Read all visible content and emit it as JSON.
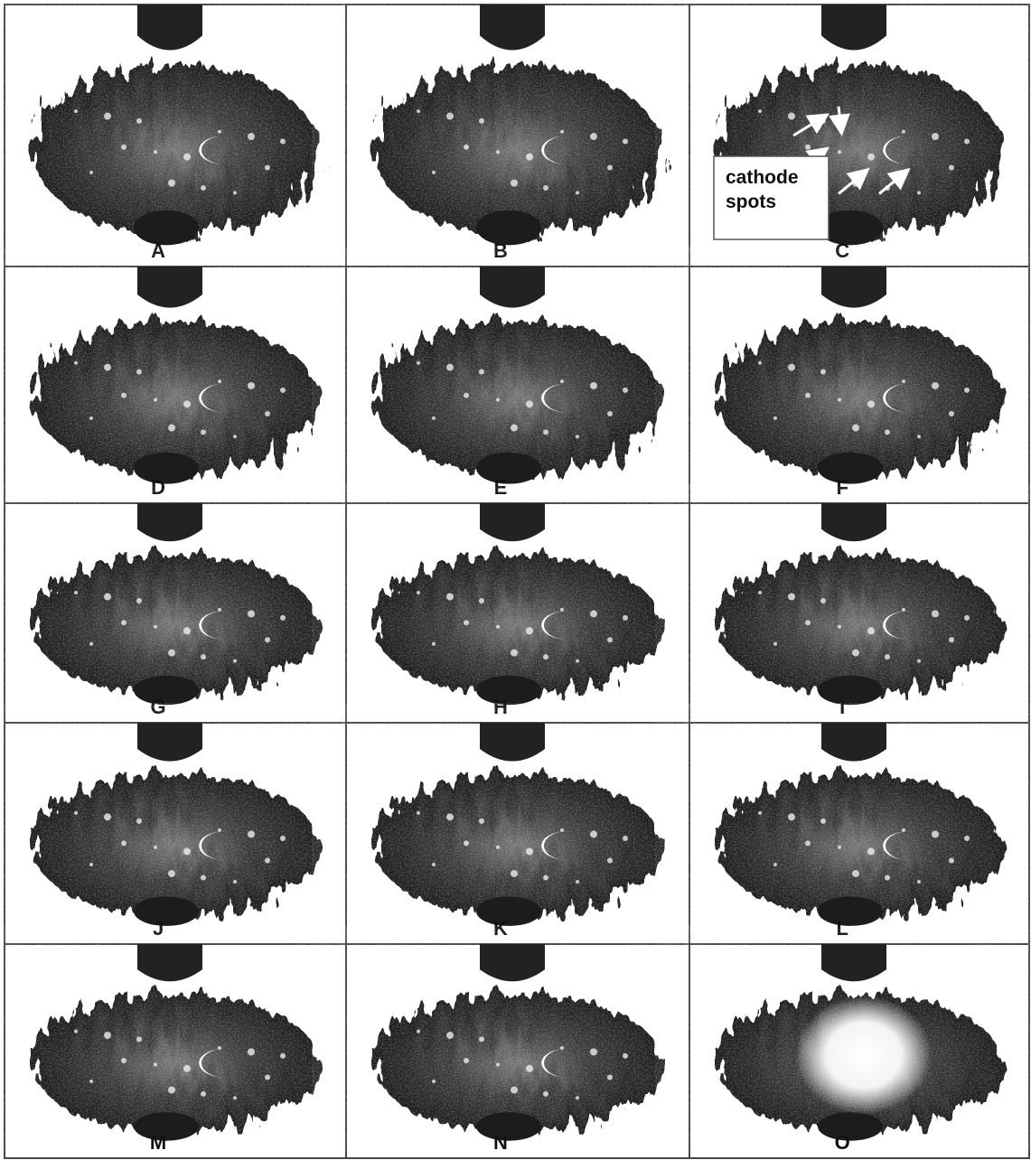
{
  "panels": [
    {
      "label": "A"
    },
    {
      "label": "B"
    },
    {
      "label": "C",
      "annotation": {
        "line1": "cathode",
        "line2": "spots"
      }
    },
    {
      "label": "D"
    },
    {
      "label": "E"
    },
    {
      "label": "F"
    },
    {
      "label": "G"
    },
    {
      "label": "H"
    },
    {
      "label": "I"
    },
    {
      "label": "J"
    },
    {
      "label": "K"
    },
    {
      "label": "L"
    },
    {
      "label": "M"
    },
    {
      "label": "N"
    },
    {
      "label": "O"
    }
  ]
}
